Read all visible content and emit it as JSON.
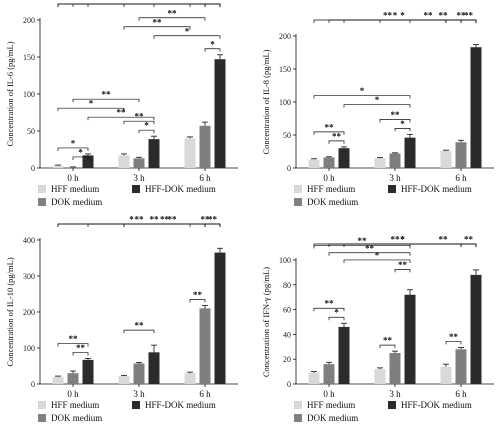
{
  "colors": {
    "HFF medium": "#d9d9d9",
    "DOK medium": "#7f7f7f",
    "HFF-DOK medium": "#2b2b2b"
  },
  "chart_data": [
    {
      "type": "bar",
      "ylabel": "Concentration of IL-6 (pg/mL)",
      "ylim": [
        0,
        200
      ],
      "yticks": [
        0,
        50,
        100,
        150,
        200
      ],
      "categories": [
        "0 h",
        "3 h",
        "6 h"
      ],
      "legend": [
        "HFF medium",
        "HFF-DOK medium",
        "DOK medium"
      ],
      "series": [
        {
          "name": "HFF medium",
          "values": [
            3,
            17,
            40
          ],
          "errors": [
            1,
            2,
            2
          ]
        },
        {
          "name": "DOK medium",
          "values": [
            1,
            13,
            57
          ],
          "errors": [
            0.5,
            1.5,
            5
          ]
        },
        {
          "name": "HFF-DOK medium",
          "values": [
            17,
            39,
            147
          ],
          "errors": [
            2,
            4,
            6
          ]
        }
      ],
      "brackets": [
        {
          "from": [
            0,
            0
          ],
          "to": [
            0,
            2
          ],
          "level": 0,
          "label": "*"
        },
        {
          "from": [
            0,
            1
          ],
          "to": [
            0,
            2
          ],
          "level": -1,
          "label": "*"
        },
        {
          "from": [
            1,
            1
          ],
          "to": [
            1,
            2
          ],
          "level": 0,
          "label": "*"
        },
        {
          "from": [
            1,
            0
          ],
          "to": [
            1,
            2
          ],
          "level": 1,
          "label": "**"
        },
        {
          "from": [
            2,
            1
          ],
          "to": [
            2,
            2
          ],
          "level": 0,
          "label": "*"
        },
        {
          "from": [
            0,
            0
          ],
          "to": [
            1,
            0
          ],
          "level": 2,
          "label": "*"
        },
        {
          "from": [
            0,
            1
          ],
          "to": [
            1,
            1
          ],
          "level": 3,
          "label": "**"
        },
        {
          "from": [
            0,
            2
          ],
          "to": [
            1,
            2
          ],
          "level": 1,
          "label": "**"
        },
        {
          "from": [
            1,
            0
          ],
          "to": [
            2,
            0
          ],
          "level": 2,
          "label": "**"
        },
        {
          "from": [
            1,
            1
          ],
          "to": [
            2,
            1
          ],
          "level": 3,
          "label": "**"
        },
        {
          "from": [
            1,
            2
          ],
          "to": [
            2,
            2
          ],
          "level": 1,
          "label": "*"
        },
        {
          "from": [
            0,
            0
          ],
          "to": [
            2,
            0
          ],
          "level": 6,
          "label": "**"
        },
        {
          "from": [
            0,
            1
          ],
          "to": [
            2,
            1
          ],
          "level": 7,
          "label": "*"
        },
        {
          "from": [
            0,
            2
          ],
          "to": [
            2,
            2
          ],
          "level": 8,
          "label": "*"
        },
        {
          "from": [
            0,
            0
          ],
          "to": [
            2,
            2
          ],
          "level": 9,
          "label": "*"
        },
        {
          "from": [
            1,
            0
          ],
          "to": [
            2,
            2
          ],
          "level": 8.4,
          "label": "**"
        },
        {
          "from": [
            2,
            1
          ],
          "to": [
            2,
            2
          ],
          "level": 9.4,
          "label": "**"
        },
        {
          "from": [
            1,
            2
          ],
          "to": [
            2,
            2
          ],
          "level": 10.3,
          "label": "**"
        }
      ]
    },
    {
      "type": "bar",
      "ylabel": "Concentration of IL-8 (pg/mL)",
      "ylim": [
        0,
        200
      ],
      "yticks": [
        0,
        50,
        100,
        150,
        200
      ],
      "categories": [
        "0 h",
        "3 h",
        "6 h"
      ],
      "legend": [
        "HFF medium",
        "HFF-DOK medium",
        "DOK medium"
      ],
      "series": [
        {
          "name": "HFF medium",
          "values": [
            13,
            15,
            26
          ],
          "errors": [
            1,
            1,
            1
          ]
        },
        {
          "name": "DOK medium",
          "values": [
            16,
            22,
            39
          ],
          "errors": [
            1,
            1,
            3
          ]
        },
        {
          "name": "HFF-DOK medium",
          "values": [
            30,
            46,
            183
          ],
          "errors": [
            2,
            5,
            4
          ]
        }
      ],
      "brackets": [
        {
          "from": [
            0,
            1
          ],
          "to": [
            0,
            2
          ],
          "level": 0,
          "label": "**"
        },
        {
          "from": [
            0,
            0
          ],
          "to": [
            0,
            2
          ],
          "level": 1,
          "label": "**"
        },
        {
          "from": [
            1,
            1
          ],
          "to": [
            1,
            2
          ],
          "level": 0,
          "label": "*"
        },
        {
          "from": [
            1,
            0
          ],
          "to": [
            1,
            2
          ],
          "level": 1,
          "label": "**"
        },
        {
          "from": [
            0,
            2
          ],
          "to": [
            1,
            2
          ],
          "level": 2.2,
          "label": "*"
        },
        {
          "from": [
            0,
            0
          ],
          "to": [
            1,
            2
          ],
          "level": 3.2,
          "label": "*"
        },
        {
          "from": [
            1,
            2
          ],
          "to": [
            2,
            2
          ],
          "level": 3.6,
          "label": "**"
        },
        {
          "from": [
            0,
            0
          ],
          "to": [
            2,
            2
          ],
          "level": 6.4,
          "label": "*"
        },
        {
          "from": [
            0,
            1
          ],
          "to": [
            2,
            0
          ],
          "level": 7.4,
          "label": "**"
        },
        {
          "from": [
            0,
            2
          ],
          "to": [
            2,
            1
          ],
          "level": 8.4,
          "label": "*"
        },
        {
          "from": [
            1,
            0
          ],
          "to": [
            2,
            2
          ],
          "level": 8.8,
          "label": "**"
        },
        {
          "from": [
            2,
            0
          ],
          "to": [
            2,
            2
          ],
          "level": 9.8,
          "label": "**"
        },
        {
          "from": [
            2,
            1
          ],
          "to": [
            2,
            2
          ],
          "level": 10.8,
          "label": "**"
        }
      ]
    },
    {
      "type": "bar",
      "ylabel": "Concentration of IL-10 (pg/mL)",
      "ylim": [
        0,
        400
      ],
      "yticks": [
        0,
        100,
        200,
        300,
        400
      ],
      "categories": [
        "0 h",
        "3 h",
        "6 h"
      ],
      "legend": [
        "HFF medium",
        "HFF-DOK medium",
        "DOK medium"
      ],
      "series": [
        {
          "name": "HFF medium",
          "values": [
            20,
            22,
            30
          ],
          "errors": [
            2,
            2,
            3
          ]
        },
        {
          "name": "DOK medium",
          "values": [
            30,
            57,
            210
          ],
          "errors": [
            6,
            3,
            8
          ]
        },
        {
          "name": "HFF-DOK medium",
          "values": [
            67,
            88,
            365
          ],
          "errors": [
            4,
            20,
            12
          ]
        }
      ],
      "brackets": [
        {
          "from": [
            0,
            1
          ],
          "to": [
            0,
            2
          ],
          "level": 0,
          "label": "**"
        },
        {
          "from": [
            0,
            0
          ],
          "to": [
            0,
            2
          ],
          "level": 1,
          "label": "**"
        },
        {
          "from": [
            1,
            0
          ],
          "to": [
            1,
            2
          ],
          "level": 1,
          "label": "**"
        },
        {
          "from": [
            2,
            0
          ],
          "to": [
            2,
            1
          ],
          "level": 0,
          "label": "**"
        },
        {
          "from": [
            0,
            0
          ],
          "to": [
            2,
            1
          ],
          "level": 3.6,
          "label": "*"
        },
        {
          "from": [
            1,
            0
          ],
          "to": [
            2,
            1
          ],
          "level": 3.2,
          "label": "**"
        },
        {
          "from": [
            0,
            0
          ],
          "to": [
            2,
            2
          ],
          "level": 7.4,
          "label": "**"
        },
        {
          "from": [
            1,
            0
          ],
          "to": [
            2,
            2
          ],
          "level": 8.4,
          "label": "**"
        },
        {
          "from": [
            2,
            0
          ],
          "to": [
            2,
            2
          ],
          "level": 9.2,
          "label": "**"
        },
        {
          "from": [
            0,
            2
          ],
          "to": [
            2,
            2
          ],
          "level": 10.4,
          "label": "**"
        },
        {
          "from": [
            2,
            1
          ],
          "to": [
            2,
            2
          ],
          "level": 8.0,
          "label": "**"
        }
      ]
    },
    {
      "type": "bar",
      "ylabel": "Concentration of IFN-γ (pg/mL)",
      "ylim": [
        0,
        100
      ],
      "yticks": [
        0,
        20,
        40,
        60,
        80,
        100
      ],
      "categories": [
        "0 h",
        "3 h",
        "6 h"
      ],
      "legend": [
        "HFF medium",
        "HFF-DOK medium",
        "DOK medium"
      ],
      "series": [
        {
          "name": "HFF medium",
          "values": [
            9,
            12,
            14
          ],
          "errors": [
            1,
            1,
            2
          ]
        },
        {
          "name": "DOK medium",
          "values": [
            16,
            25,
            28
          ],
          "errors": [
            1.5,
            1.5,
            1.5
          ]
        },
        {
          "name": "HFF-DOK medium",
          "values": [
            46,
            72,
            88
          ],
          "errors": [
            3,
            4,
            4
          ]
        }
      ],
      "brackets": [
        {
          "from": [
            0,
            1
          ],
          "to": [
            0,
            2
          ],
          "level": 0,
          "label": "*"
        },
        {
          "from": [
            0,
            0
          ],
          "to": [
            0,
            2
          ],
          "level": 1,
          "label": "**"
        },
        {
          "from": [
            1,
            0
          ],
          "to": [
            1,
            1
          ],
          "level": 0,
          "label": "**"
        },
        {
          "from": [
            2,
            0
          ],
          "to": [
            2,
            1
          ],
          "level": 0,
          "label": "**"
        },
        {
          "from": [
            0,
            2
          ],
          "to": [
            1,
            2
          ],
          "level": 2.2,
          "label": "*"
        },
        {
          "from": [
            1,
            1
          ],
          "to": [
            1,
            2
          ],
          "level": 1.6,
          "label": "**"
        },
        {
          "from": [
            0,
            1
          ],
          "to": [
            1,
            2
          ],
          "level": 3.0,
          "label": "**"
        },
        {
          "from": [
            0,
            0
          ],
          "to": [
            1,
            2
          ],
          "level": 3.8,
          "label": "**"
        },
        {
          "from": [
            0,
            2
          ],
          "to": [
            2,
            1
          ],
          "level": 5.2,
          "label": "*"
        },
        {
          "from": [
            0,
            1
          ],
          "to": [
            2,
            2
          ],
          "level": 6.0,
          "label": "*"
        },
        {
          "from": [
            0,
            0
          ],
          "to": [
            2,
            2
          ],
          "level": 6.8,
          "label": "**"
        },
        {
          "from": [
            1,
            2
          ],
          "to": [
            2,
            2
          ],
          "level": 5.6,
          "label": "**"
        },
        {
          "from": [
            2,
            1
          ],
          "to": [
            2,
            2
          ],
          "level": 6.4,
          "label": "**"
        }
      ]
    }
  ]
}
